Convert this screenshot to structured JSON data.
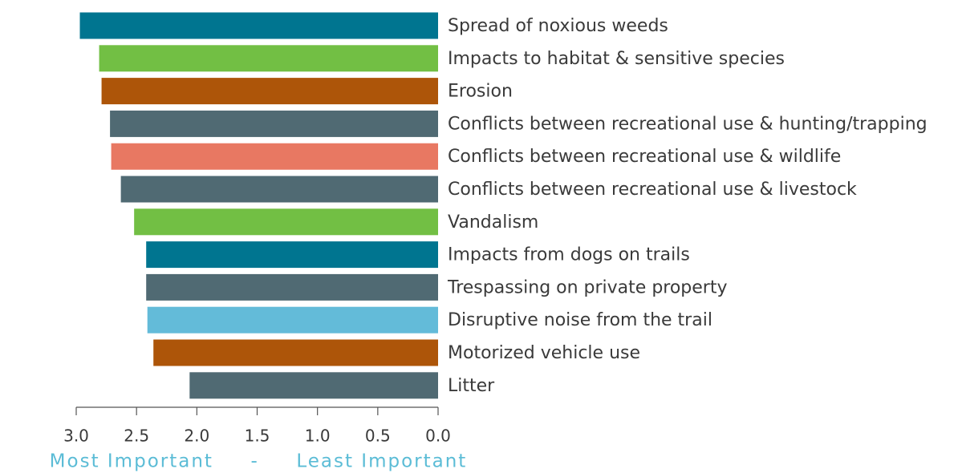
{
  "chart_data": {
    "type": "hbar",
    "categories": [
      "Spread of noxious weeds",
      "Impacts to habitat & sensitive species",
      "Erosion",
      "Conflicts between recreational use & hunting/trapping",
      "Conflicts between recreational use & wildlife",
      "Conflicts between recreational use & livestock",
      "Vandalism",
      "Impacts from dogs on trails",
      "Trespassing on private property",
      "Disruptive noise from the trail",
      "Motorized vehicle use",
      "Litter"
    ],
    "values": [
      2.97,
      2.81,
      2.79,
      2.72,
      2.71,
      2.63,
      2.52,
      2.42,
      2.42,
      2.41,
      2.36,
      2.06
    ],
    "colors": [
      "#007590",
      "#72bf44",
      "#ad5509",
      "#506a73",
      "#e87862",
      "#506a73",
      "#72bf44",
      "#007590",
      "#506a73",
      "#63bbd9",
      "#ad5509",
      "#506a73"
    ],
    "xlim": [
      3,
      0
    ],
    "xticks": [
      {
        "value": 3,
        "label": "3.0"
      },
      2.5,
      {
        "value": 2,
        "label": "2.0"
      },
      1.5,
      {
        "value": 1,
        "label": "1.0"
      },
      0.5,
      {
        "value": 0,
        "label": "0.0"
      }
    ],
    "xlabel": "Most Important     -     Least Important"
  }
}
